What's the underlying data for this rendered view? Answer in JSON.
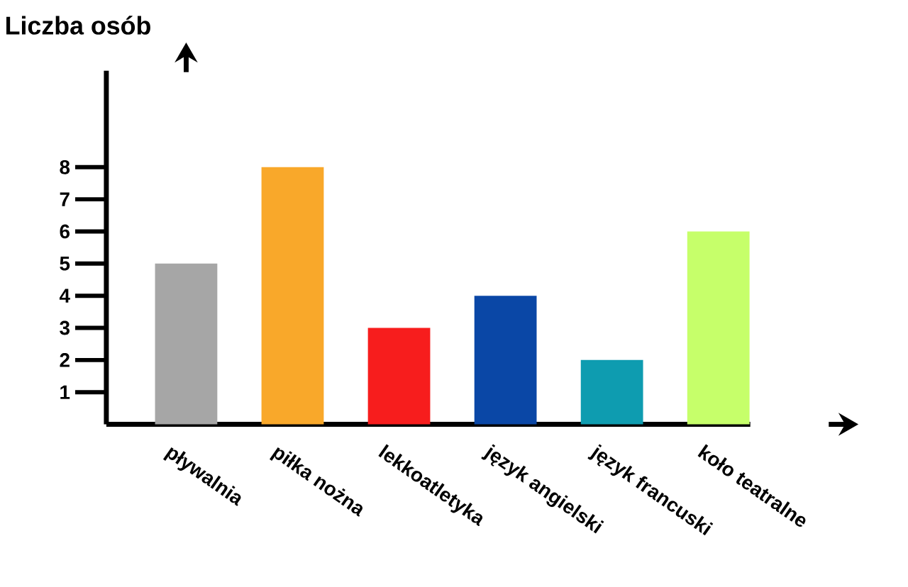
{
  "chart_data": {
    "type": "bar",
    "ylabel": "Liczba osób",
    "categories": [
      "pływalnia",
      "piłka nożna",
      "lekkoatletyka",
      "język angielski",
      "język francuski",
      "koło teatralne"
    ],
    "values": [
      5,
      8,
      3,
      4,
      2,
      6
    ],
    "colors": [
      "#a6a6a6",
      "#f9a82a",
      "#f71d1d",
      "#0a47a6",
      "#0e9cb0",
      "#c6ff6a"
    ],
    "ylim": [
      0,
      11
    ],
    "yticks": [
      1,
      2,
      3,
      4,
      5,
      6,
      7,
      8
    ],
    "grid": false
  }
}
